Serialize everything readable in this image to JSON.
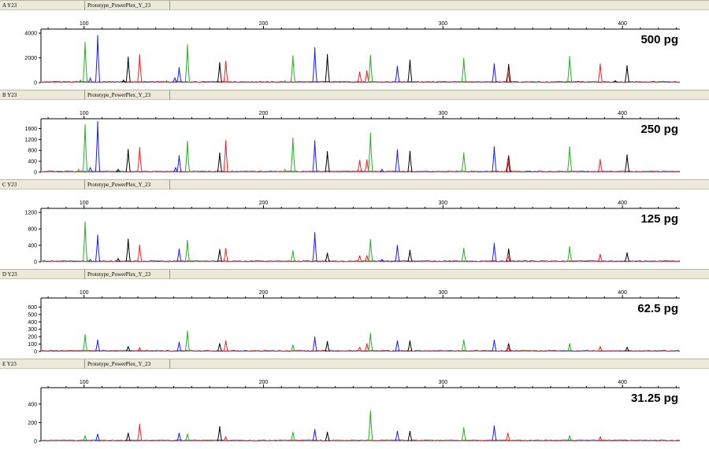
{
  "colors": {
    "green": "#1fb31f",
    "blue": "#1a1aff",
    "black": "#000000",
    "red": "#ff1a1a"
  },
  "panel_name": "Prototype_PowerPlex_Y_23",
  "chart_data": {
    "type": "line",
    "x_ticks": [
      "100",
      "200",
      "300",
      "400"
    ],
    "x_range": [
      76,
      432
    ],
    "panels": [
      {
        "label": "A Y23",
        "amount": "500 pg",
        "ylim": [
          0,
          4200
        ],
        "y_ticks": [
          {
            "value": 0,
            "label": "0"
          },
          {
            "value": 2000,
            "label": "2000"
          },
          {
            "value": 4000,
            "label": "4000"
          }
        ],
        "peaks": [
          {
            "x": 100.6,
            "h": 3300,
            "c": "green"
          },
          {
            "x": 107.6,
            "h": 3850,
            "c": "blue"
          },
          {
            "x": 103.5,
            "h": 350,
            "c": "blue"
          },
          {
            "x": 98,
            "h": 200,
            "c": "green"
          },
          {
            "x": 122,
            "h": 200,
            "c": "black"
          },
          {
            "x": 124.6,
            "h": 2100,
            "c": "black"
          },
          {
            "x": 131,
            "h": 2300,
            "c": "red"
          },
          {
            "x": 146,
            "h": 150,
            "c": "green"
          },
          {
            "x": 150.6,
            "h": 400,
            "c": "blue"
          },
          {
            "x": 153,
            "h": 1250,
            "c": "blue"
          },
          {
            "x": 157.6,
            "h": 3100,
            "c": "green"
          },
          {
            "x": 175.6,
            "h": 1650,
            "c": "black"
          },
          {
            "x": 179,
            "h": 1750,
            "c": "red"
          },
          {
            "x": 212,
            "h": 150,
            "c": "green"
          },
          {
            "x": 216.4,
            "h": 2200,
            "c": "green"
          },
          {
            "x": 228.6,
            "h": 2850,
            "c": "blue"
          },
          {
            "x": 235.6,
            "h": 2300,
            "c": "black"
          },
          {
            "x": 253.6,
            "h": 900,
            "c": "red"
          },
          {
            "x": 257.6,
            "h": 1000,
            "c": "red"
          },
          {
            "x": 259.6,
            "h": 2250,
            "c": "green"
          },
          {
            "x": 274.6,
            "h": 1350,
            "c": "blue"
          },
          {
            "x": 281.6,
            "h": 1850,
            "c": "black"
          },
          {
            "x": 311.6,
            "h": 2000,
            "c": "green"
          },
          {
            "x": 328.6,
            "h": 1550,
            "c": "blue"
          },
          {
            "x": 336.6,
            "h": 1500,
            "c": "black"
          },
          {
            "x": 336.2,
            "h": 1000,
            "c": "red"
          },
          {
            "x": 370.6,
            "h": 2150,
            "c": "green"
          },
          {
            "x": 387.6,
            "h": 1550,
            "c": "red"
          },
          {
            "x": 402.6,
            "h": 1400,
            "c": "black"
          },
          {
            "x": 396,
            "h": 150,
            "c": "black"
          }
        ]
      },
      {
        "label": "B Y23",
        "amount": "250 pg",
        "ylim": [
          0,
          1900
        ],
        "y_ticks": [
          {
            "value": 0,
            "label": "0"
          },
          {
            "value": 400,
            "label": "400"
          },
          {
            "value": 800,
            "label": "800"
          },
          {
            "value": 1200,
            "label": "1200"
          },
          {
            "value": 1600,
            "label": "1600"
          }
        ],
        "peaks": [
          {
            "x": 100.6,
            "h": 1750,
            "c": "green"
          },
          {
            "x": 107.6,
            "h": 1870,
            "c": "blue"
          },
          {
            "x": 103.5,
            "h": 180,
            "c": "blue"
          },
          {
            "x": 97,
            "h": 100,
            "c": "green"
          },
          {
            "x": 119,
            "h": 100,
            "c": "black"
          },
          {
            "x": 124.6,
            "h": 850,
            "c": "black"
          },
          {
            "x": 131,
            "h": 920,
            "c": "red"
          },
          {
            "x": 151,
            "h": 180,
            "c": "blue"
          },
          {
            "x": 153,
            "h": 620,
            "c": "blue"
          },
          {
            "x": 157.6,
            "h": 1150,
            "c": "green"
          },
          {
            "x": 175.6,
            "h": 720,
            "c": "black"
          },
          {
            "x": 179,
            "h": 1170,
            "c": "red"
          },
          {
            "x": 212,
            "h": 100,
            "c": "green"
          },
          {
            "x": 216.4,
            "h": 1260,
            "c": "green"
          },
          {
            "x": 228.6,
            "h": 1170,
            "c": "blue"
          },
          {
            "x": 235.6,
            "h": 770,
            "c": "black"
          },
          {
            "x": 253.6,
            "h": 450,
            "c": "red"
          },
          {
            "x": 257.6,
            "h": 470,
            "c": "red"
          },
          {
            "x": 259.6,
            "h": 1450,
            "c": "green"
          },
          {
            "x": 266,
            "h": 100,
            "c": "blue"
          },
          {
            "x": 274.6,
            "h": 830,
            "c": "blue"
          },
          {
            "x": 281.6,
            "h": 780,
            "c": "black"
          },
          {
            "x": 311.6,
            "h": 720,
            "c": "green"
          },
          {
            "x": 328.6,
            "h": 950,
            "c": "blue"
          },
          {
            "x": 336.6,
            "h": 620,
            "c": "black"
          },
          {
            "x": 336.2,
            "h": 500,
            "c": "red"
          },
          {
            "x": 370.6,
            "h": 950,
            "c": "green"
          },
          {
            "x": 387.6,
            "h": 480,
            "c": "red"
          },
          {
            "x": 402.6,
            "h": 650,
            "c": "black"
          }
        ]
      },
      {
        "label": "C Y23",
        "amount": "125 pg",
        "ylim": [
          0,
          1260
        ],
        "y_ticks": [
          {
            "value": 0,
            "label": "0"
          },
          {
            "value": 400,
            "label": "400"
          },
          {
            "value": 800,
            "label": "800"
          },
          {
            "value": 1200,
            "label": "1200"
          }
        ],
        "peaks": [
          {
            "x": 100.6,
            "h": 980,
            "c": "green"
          },
          {
            "x": 107.6,
            "h": 660,
            "c": "blue"
          },
          {
            "x": 103.5,
            "h": 60,
            "c": "blue"
          },
          {
            "x": 119,
            "h": 80,
            "c": "black"
          },
          {
            "x": 124.6,
            "h": 560,
            "c": "black"
          },
          {
            "x": 131,
            "h": 420,
            "c": "red"
          },
          {
            "x": 153,
            "h": 320,
            "c": "blue"
          },
          {
            "x": 157.6,
            "h": 530,
            "c": "green"
          },
          {
            "x": 175.6,
            "h": 310,
            "c": "black"
          },
          {
            "x": 179,
            "h": 330,
            "c": "red"
          },
          {
            "x": 216.4,
            "h": 280,
            "c": "green"
          },
          {
            "x": 228.6,
            "h": 720,
            "c": "blue"
          },
          {
            "x": 235.6,
            "h": 220,
            "c": "black"
          },
          {
            "x": 253.6,
            "h": 150,
            "c": "red"
          },
          {
            "x": 257.6,
            "h": 160,
            "c": "red"
          },
          {
            "x": 259.6,
            "h": 550,
            "c": "green"
          },
          {
            "x": 266,
            "h": 60,
            "c": "blue"
          },
          {
            "x": 274.6,
            "h": 410,
            "c": "blue"
          },
          {
            "x": 281.6,
            "h": 290,
            "c": "black"
          },
          {
            "x": 311.6,
            "h": 340,
            "c": "green"
          },
          {
            "x": 328.6,
            "h": 460,
            "c": "blue"
          },
          {
            "x": 336.6,
            "h": 320,
            "c": "black"
          },
          {
            "x": 336.2,
            "h": 160,
            "c": "red"
          },
          {
            "x": 370.6,
            "h": 380,
            "c": "green"
          },
          {
            "x": 387.6,
            "h": 190,
            "c": "red"
          },
          {
            "x": 402.6,
            "h": 230,
            "c": "black"
          }
        ]
      },
      {
        "label": "D Y23",
        "amount": "62.5 pg",
        "ylim": [
          0,
          700
        ],
        "y_ticks": [
          {
            "value": 0,
            "label": "0"
          },
          {
            "value": 100,
            "label": "100"
          },
          {
            "value": 200,
            "label": "200"
          },
          {
            "value": 300,
            "label": "300"
          },
          {
            "value": 400,
            "label": "400"
          },
          {
            "value": 500,
            "label": "500"
          },
          {
            "value": 600,
            "label": "600"
          }
        ],
        "peaks": [
          {
            "x": 100.6,
            "h": 230,
            "c": "green"
          },
          {
            "x": 107.6,
            "h": 160,
            "c": "blue"
          },
          {
            "x": 124.6,
            "h": 70,
            "c": "black"
          },
          {
            "x": 131,
            "h": 50,
            "c": "red"
          },
          {
            "x": 153,
            "h": 130,
            "c": "blue"
          },
          {
            "x": 157.6,
            "h": 280,
            "c": "green"
          },
          {
            "x": 175.6,
            "h": 110,
            "c": "black"
          },
          {
            "x": 179,
            "h": 150,
            "c": "red"
          },
          {
            "x": 216.4,
            "h": 90,
            "c": "green"
          },
          {
            "x": 228.6,
            "h": 200,
            "c": "blue"
          },
          {
            "x": 235.6,
            "h": 140,
            "c": "black"
          },
          {
            "x": 253.6,
            "h": 60,
            "c": "red"
          },
          {
            "x": 257.6,
            "h": 110,
            "c": "red"
          },
          {
            "x": 259.6,
            "h": 250,
            "c": "green"
          },
          {
            "x": 274.6,
            "h": 150,
            "c": "blue"
          },
          {
            "x": 281.6,
            "h": 150,
            "c": "black"
          },
          {
            "x": 311.6,
            "h": 160,
            "c": "green"
          },
          {
            "x": 328.6,
            "h": 160,
            "c": "blue"
          },
          {
            "x": 336.6,
            "h": 110,
            "c": "black"
          },
          {
            "x": 336.2,
            "h": 70,
            "c": "red"
          },
          {
            "x": 370.6,
            "h": 110,
            "c": "green"
          },
          {
            "x": 387.6,
            "h": 70,
            "c": "red"
          },
          {
            "x": 402.6,
            "h": 60,
            "c": "black"
          }
        ]
      },
      {
        "label": "E Y23",
        "amount": "31.25 pg",
        "ylim": [
          0,
          560
        ],
        "y_ticks": [
          {
            "value": 0,
            "label": "0"
          },
          {
            "value": 200,
            "label": "200"
          },
          {
            "value": 400,
            "label": "400"
          }
        ],
        "peaks": [
          {
            "x": 100.6,
            "h": 60,
            "c": "green"
          },
          {
            "x": 107.6,
            "h": 80,
            "c": "blue"
          },
          {
            "x": 124.6,
            "h": 90,
            "c": "black"
          },
          {
            "x": 131,
            "h": 190,
            "c": "red"
          },
          {
            "x": 153,
            "h": 90,
            "c": "blue"
          },
          {
            "x": 157.6,
            "h": 80,
            "c": "green"
          },
          {
            "x": 175.6,
            "h": 160,
            "c": "black"
          },
          {
            "x": 179,
            "h": 50,
            "c": "red"
          },
          {
            "x": 216.4,
            "h": 100,
            "c": "green"
          },
          {
            "x": 228.6,
            "h": 130,
            "c": "blue"
          },
          {
            "x": 235.6,
            "h": 100,
            "c": "black"
          },
          {
            "x": 259.6,
            "h": 330,
            "c": "green"
          },
          {
            "x": 274.6,
            "h": 110,
            "c": "blue"
          },
          {
            "x": 281.6,
            "h": 110,
            "c": "black"
          },
          {
            "x": 311.6,
            "h": 150,
            "c": "green"
          },
          {
            "x": 328.6,
            "h": 170,
            "c": "blue"
          },
          {
            "x": 336.2,
            "h": 90,
            "c": "red"
          },
          {
            "x": 370.6,
            "h": 60,
            "c": "green"
          },
          {
            "x": 387.6,
            "h": 50,
            "c": "red"
          }
        ]
      }
    ]
  }
}
